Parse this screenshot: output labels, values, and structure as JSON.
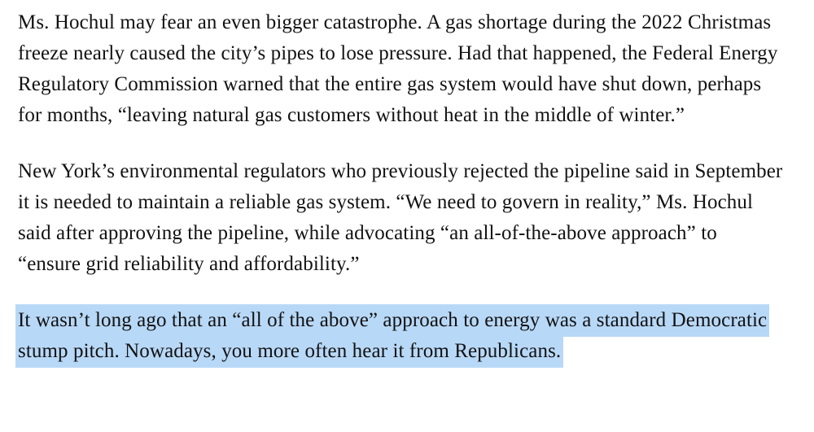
{
  "theme": {
    "background_color": "#ffffff",
    "text_color": "#121212",
    "highlight_color": "#b8d8f7"
  },
  "article": {
    "paragraphs": [
      {
        "text": "Ms. Hochul may fear an even bigger catastrophe. A gas shortage during the 2022 Christmas freeze nearly caused the city’s pipes to lose pressure. Had that happened, the Federal Energy Regulatory Commission warned that the entire gas system would have shut down, perhaps for months, “leaving natural gas customers without heat in the middle of winter.”",
        "highlighted": false
      },
      {
        "text": "New York’s environmental regulators who previously rejected the pipeline said in September it is needed to maintain a reliable gas system. “We need to govern in reality,” Ms. Hochul said after approving the pipeline, while advocating “an all-of-the-above approach” to “ensure grid reliability and affordability.”",
        "highlighted": false
      },
      {
        "text": "It wasn’t long ago that an “all of the above” approach to energy was a standard Democratic stump pitch. Nowadays, you more often hear it from Republicans.",
        "highlighted": true
      }
    ]
  }
}
